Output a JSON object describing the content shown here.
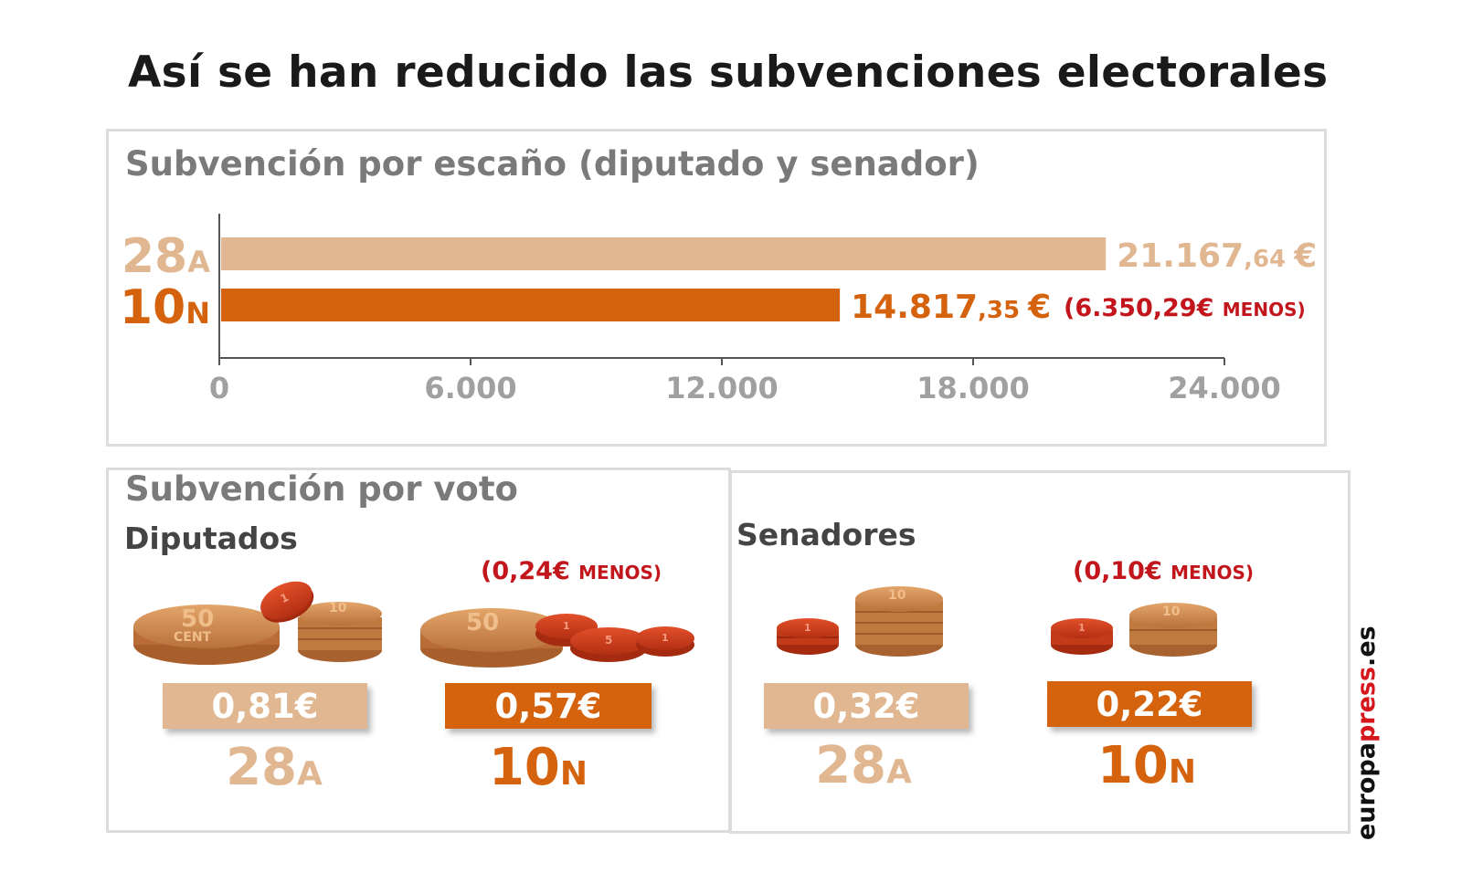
{
  "title": "Así se han reducido las subvenciones electorales",
  "colors": {
    "28A": "#e0b791",
    "10N": "#d5620c",
    "menos": "#c3161c",
    "axis": "#a0a0a0"
  },
  "escano": {
    "heading": "Subvención por escaño (diputado y senador)",
    "menos_label": "(6.350,29€",
    "menos_suffix": "MENOS)"
  },
  "chart_data": {
    "type": "bar",
    "orientation": "horizontal",
    "title": "Subvención por escaño (diputado y senador)",
    "categories": [
      "28A",
      "10N"
    ],
    "values": [
      21167.64,
      14817.35
    ],
    "value_labels": [
      {
        "main": "21.167",
        "dec": ",64",
        "unit": "€"
      },
      {
        "main": "14.817",
        "dec": ",35",
        "unit": "€"
      }
    ],
    "category_labels": [
      {
        "num": "28",
        "suf": "A"
      },
      {
        "num": "10",
        "suf": "N"
      }
    ],
    "xlim": [
      0,
      24000
    ],
    "xticks": [
      0,
      6000,
      12000,
      18000,
      24000
    ],
    "xtick_labels": [
      "0",
      "6.000",
      "12.000",
      "18.000",
      "24.000"
    ],
    "grid": false
  },
  "voto": {
    "heading": "Subvención por voto",
    "diputados": {
      "label": "Diputados",
      "menos_label": "(0,24€",
      "menos_suffix": "MENOS)",
      "a_value": "0,81€",
      "n_value": "0,57€"
    },
    "senadores": {
      "label": "Senadores",
      "menos_label": "(0,10€",
      "menos_suffix": "MENOS)",
      "a_value": "0,32€",
      "n_value": "0,22€"
    },
    "period_a": {
      "num": "28",
      "suf": "A"
    },
    "period_n": {
      "num": "10",
      "suf": "N"
    },
    "coin_labels": {
      "fifty": "50",
      "ten": "10",
      "one": "1",
      "five": "5",
      "cent": "CENT"
    }
  },
  "source": {
    "part1": "europa",
    "part2": "press",
    "part3": ".es"
  }
}
